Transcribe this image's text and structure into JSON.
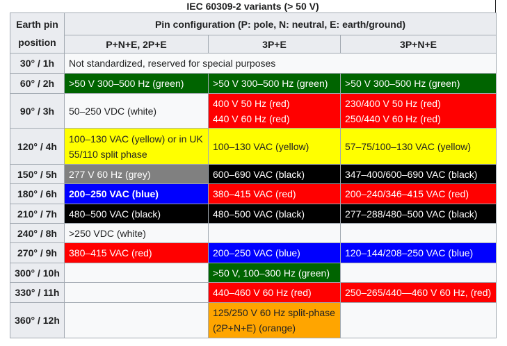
{
  "caption": "IEC 60309-2 variants (> 50 V)",
  "header": {
    "earth_pin": "Earth pin position",
    "pin_config": "Pin configuration (P: pole, N: neutral, E: earth/ground)",
    "columns": [
      "P+N+E, 2P+E",
      "3P+E",
      "3P+N+E"
    ]
  },
  "colors": {
    "green": "#006400",
    "red": "#ff0000",
    "white": "#f8f9fa",
    "yellow": "#ffff00",
    "grey": "#808080",
    "black": "#000000",
    "blue": "#0000ff",
    "orange": "#ffa500"
  },
  "rows": [
    {
      "position": "30° / 1h",
      "cells": [
        {
          "text": "Not standardized, reserved for special purposes",
          "color": "white",
          "span": 3
        }
      ]
    },
    {
      "position": "60° / 2h",
      "cells": [
        {
          "text": ">50 V 300–500 Hz (green)",
          "color": "green"
        },
        {
          "text": ">50 V 300–500 Hz (green)",
          "color": "green"
        },
        {
          "text": ">50 V 300–500 Hz (green)",
          "color": "green"
        }
      ]
    },
    {
      "position": "90° / 3h",
      "cells": [
        {
          "text": "50–250 VDC (white)",
          "color": "white"
        },
        {
          "text": "400 V 50 Hz (red)\n440 V 60 Hz (red)",
          "color": "red"
        },
        {
          "text": "230/400 V 50 Hz (red)\n250/440 V 60 Hz (red)",
          "color": "red"
        }
      ]
    },
    {
      "position": "120° / 4h",
      "cells": [
        {
          "text": "100–130 VAC (yellow) or in UK 55/110 split phase",
          "color": "yellow"
        },
        {
          "text": "100–130 VAC (yellow)",
          "color": "yellow"
        },
        {
          "text": "57–75/100–130 VAC (yellow)",
          "color": "yellow"
        }
      ]
    },
    {
      "position": "150° / 5h",
      "cells": [
        {
          "text": "277 V 60 Hz (grey)",
          "color": "grey"
        },
        {
          "text": "600–690 VAC (black)",
          "color": "black"
        },
        {
          "text": "347–400/600–690 VAC (black)",
          "color": "black"
        }
      ]
    },
    {
      "position": "180° / 6h",
      "cells": [
        {
          "text": "200–250 VAC (blue)",
          "color": "blue",
          "bold": true
        },
        {
          "text": "380–415 VAC (red)",
          "color": "red"
        },
        {
          "text": "200–240/346–415 VAC (red)",
          "color": "red"
        }
      ]
    },
    {
      "position": "210° / 7h",
      "cells": [
        {
          "text": "480–500 VAC (black)",
          "color": "black"
        },
        {
          "text": "480–500 VAC (black)",
          "color": "black"
        },
        {
          "text": "277–288/480–500 VAC (black)",
          "color": "black"
        }
      ]
    },
    {
      "position": "240° / 8h",
      "cells": [
        {
          "text": ">250 VDC (white)",
          "color": "white"
        },
        {
          "text": "",
          "color": "white"
        },
        {
          "text": "",
          "color": "white"
        }
      ]
    },
    {
      "position": "270° / 9h",
      "cells": [
        {
          "text": "380–415 VAC (red)",
          "color": "red"
        },
        {
          "text": "200–250 VAC (blue)",
          "color": "blue"
        },
        {
          "text": "120–144/208–250 VAC (blue)",
          "color": "blue"
        }
      ]
    },
    {
      "position": "300° / 10h",
      "cells": [
        {
          "text": "",
          "color": "white"
        },
        {
          "text": ">50 V, 100–300 Hz (green)",
          "color": "green"
        },
        {
          "text": "",
          "color": "white"
        }
      ]
    },
    {
      "position": "330° / 11h",
      "cells": [
        {
          "text": "",
          "color": "white"
        },
        {
          "text": "440–460 V 60 Hz (red)",
          "color": "red"
        },
        {
          "text": "250–265/440—460 V 60 Hz, (red)",
          "color": "red"
        }
      ]
    },
    {
      "position": "360° / 12h",
      "cells": [
        {
          "text": "",
          "color": "white"
        },
        {
          "text": "125/250 V 60 Hz split-phase (2P+N+E) (orange)",
          "color": "orange"
        },
        {
          "text": "",
          "color": "white"
        }
      ]
    }
  ]
}
